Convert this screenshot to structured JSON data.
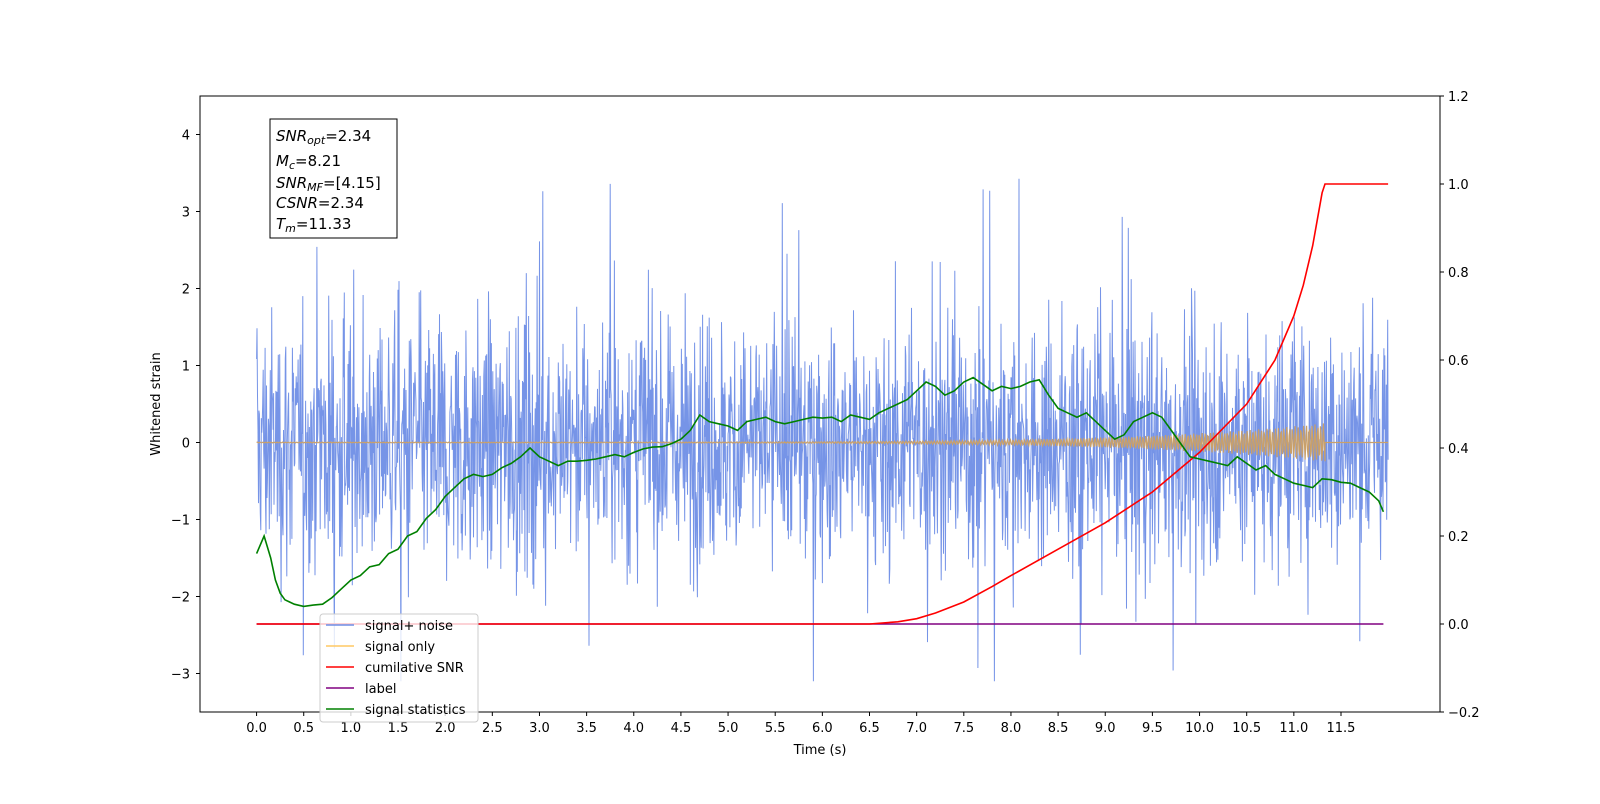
{
  "chart_data": {
    "type": "line",
    "xlabel": "Time (s)",
    "ylabel": "Whitened strain",
    "xlim": [
      -0.6,
      12.55
    ],
    "ylim": [
      -3.5,
      4.5
    ],
    "y2lim": [
      -0.2,
      1.2
    ],
    "x_ticks": [
      0.0,
      0.5,
      1.0,
      1.5,
      2.0,
      2.5,
      3.0,
      3.5,
      4.0,
      4.5,
      5.0,
      5.5,
      6.0,
      6.5,
      7.0,
      7.5,
      8.0,
      8.5,
      9.0,
      9.5,
      10.0,
      10.5,
      11.0,
      11.5
    ],
    "y_ticks": [
      -3,
      -2,
      -1,
      0,
      1,
      2,
      3,
      4
    ],
    "y2_ticks": [
      -0.2,
      0.0,
      0.2,
      0.4,
      0.6,
      0.8,
      1.0,
      1.2
    ],
    "grid": false,
    "legend_position": "lower-left",
    "legend": [
      {
        "label": "signal+ noise",
        "color": "#6f8ee6"
      },
      {
        "label": "signal only",
        "color": "#ffc964"
      },
      {
        "label": "cumilative SNR",
        "color": "#ff0000"
      },
      {
        "label": "label",
        "color": "#800080"
      },
      {
        "label": "signal statistics",
        "color": "#008000"
      }
    ],
    "annotation": {
      "snr_opt": "2.34",
      "mc": "8.21",
      "snr_mf": "[4.15]",
      "csnr": "2.34",
      "tm": "11.33"
    },
    "series": [
      {
        "name": "signal+ noise",
        "axis": "left",
        "color": "#6f8ee6",
        "noise_envelope": {
          "x_start": 0.0,
          "x_end": 12.0,
          "typical_amplitude": 1.6,
          "y_max": 4.1,
          "y_min": -3.1
        }
      },
      {
        "name": "signal only",
        "axis": "left",
        "color": "#c9a06a",
        "chirp": {
          "x_start": 0.0,
          "x_end": 11.33,
          "amplitude_start": 0.005,
          "amplitude_end": 0.25
        }
      },
      {
        "name": "cumilative SNR",
        "axis": "right",
        "color": "#ff0000",
        "x": [
          0.0,
          6.5,
          6.8,
          7.0,
          7.2,
          7.5,
          7.8,
          8.0,
          8.5,
          9.0,
          9.5,
          10.0,
          10.5,
          10.8,
          11.0,
          11.1,
          11.2,
          11.25,
          11.3,
          11.33,
          12.0
        ],
        "y": [
          0.0,
          0.0,
          0.005,
          0.012,
          0.025,
          0.05,
          0.085,
          0.11,
          0.17,
          0.23,
          0.3,
          0.39,
          0.5,
          0.6,
          0.7,
          0.77,
          0.86,
          0.92,
          0.98,
          1.0,
          1.0
        ]
      },
      {
        "name": "label",
        "axis": "right",
        "color": "#800080",
        "x": [
          0.0,
          11.95
        ],
        "y": [
          0.0,
          0.0
        ]
      },
      {
        "name": "signal statistics",
        "axis": "right",
        "color": "#008000",
        "x": [
          0.0,
          0.08,
          0.15,
          0.2,
          0.25,
          0.3,
          0.35,
          0.4,
          0.5,
          0.6,
          0.7,
          0.8,
          0.9,
          1.0,
          1.1,
          1.2,
          1.3,
          1.4,
          1.5,
          1.6,
          1.7,
          1.8,
          1.9,
          2.0,
          2.1,
          2.2,
          2.3,
          2.4,
          2.5,
          2.6,
          2.7,
          2.8,
          2.9,
          3.0,
          3.1,
          3.2,
          3.3,
          3.4,
          3.5,
          3.6,
          3.7,
          3.8,
          3.9,
          4.0,
          4.1,
          4.2,
          4.3,
          4.4,
          4.5,
          4.6,
          4.7,
          4.8,
          4.9,
          5.0,
          5.1,
          5.2,
          5.3,
          5.4,
          5.5,
          5.6,
          5.7,
          5.8,
          5.9,
          6.0,
          6.1,
          6.2,
          6.3,
          6.4,
          6.5,
          6.6,
          6.7,
          6.8,
          6.9,
          7.0,
          7.1,
          7.2,
          7.3,
          7.4,
          7.5,
          7.6,
          7.7,
          7.8,
          7.9,
          8.0,
          8.1,
          8.2,
          8.3,
          8.4,
          8.5,
          8.6,
          8.7,
          8.8,
          8.9,
          9.0,
          9.1,
          9.2,
          9.3,
          9.4,
          9.5,
          9.6,
          9.7,
          9.8,
          9.9,
          10.0,
          10.1,
          10.2,
          10.3,
          10.4,
          10.5,
          10.6,
          10.7,
          10.8,
          10.9,
          11.0,
          11.1,
          11.2,
          11.3,
          11.4,
          11.5,
          11.6,
          11.7,
          11.8,
          11.9,
          11.95
        ],
        "y": [
          0.16,
          0.2,
          0.15,
          0.1,
          0.07,
          0.055,
          0.05,
          0.045,
          0.04,
          0.043,
          0.045,
          0.06,
          0.08,
          0.1,
          0.11,
          0.13,
          0.135,
          0.16,
          0.17,
          0.2,
          0.21,
          0.24,
          0.26,
          0.29,
          0.31,
          0.33,
          0.34,
          0.335,
          0.34,
          0.355,
          0.365,
          0.38,
          0.4,
          0.38,
          0.37,
          0.36,
          0.37,
          0.37,
          0.372,
          0.375,
          0.38,
          0.385,
          0.38,
          0.39,
          0.398,
          0.402,
          0.403,
          0.41,
          0.42,
          0.44,
          0.475,
          0.46,
          0.455,
          0.45,
          0.44,
          0.46,
          0.465,
          0.47,
          0.46,
          0.455,
          0.46,
          0.465,
          0.47,
          0.468,
          0.47,
          0.46,
          0.475,
          0.47,
          0.465,
          0.48,
          0.49,
          0.5,
          0.51,
          0.53,
          0.55,
          0.54,
          0.52,
          0.53,
          0.55,
          0.56,
          0.545,
          0.53,
          0.54,
          0.535,
          0.54,
          0.55,
          0.555,
          0.52,
          0.49,
          0.48,
          0.47,
          0.48,
          0.46,
          0.44,
          0.42,
          0.43,
          0.46,
          0.47,
          0.48,
          0.47,
          0.44,
          0.41,
          0.38,
          0.375,
          0.37,
          0.365,
          0.36,
          0.38,
          0.365,
          0.35,
          0.36,
          0.34,
          0.33,
          0.32,
          0.315,
          0.31,
          0.33,
          0.328,
          0.322,
          0.32,
          0.31,
          0.3,
          0.28,
          0.255
        ]
      }
    ]
  }
}
